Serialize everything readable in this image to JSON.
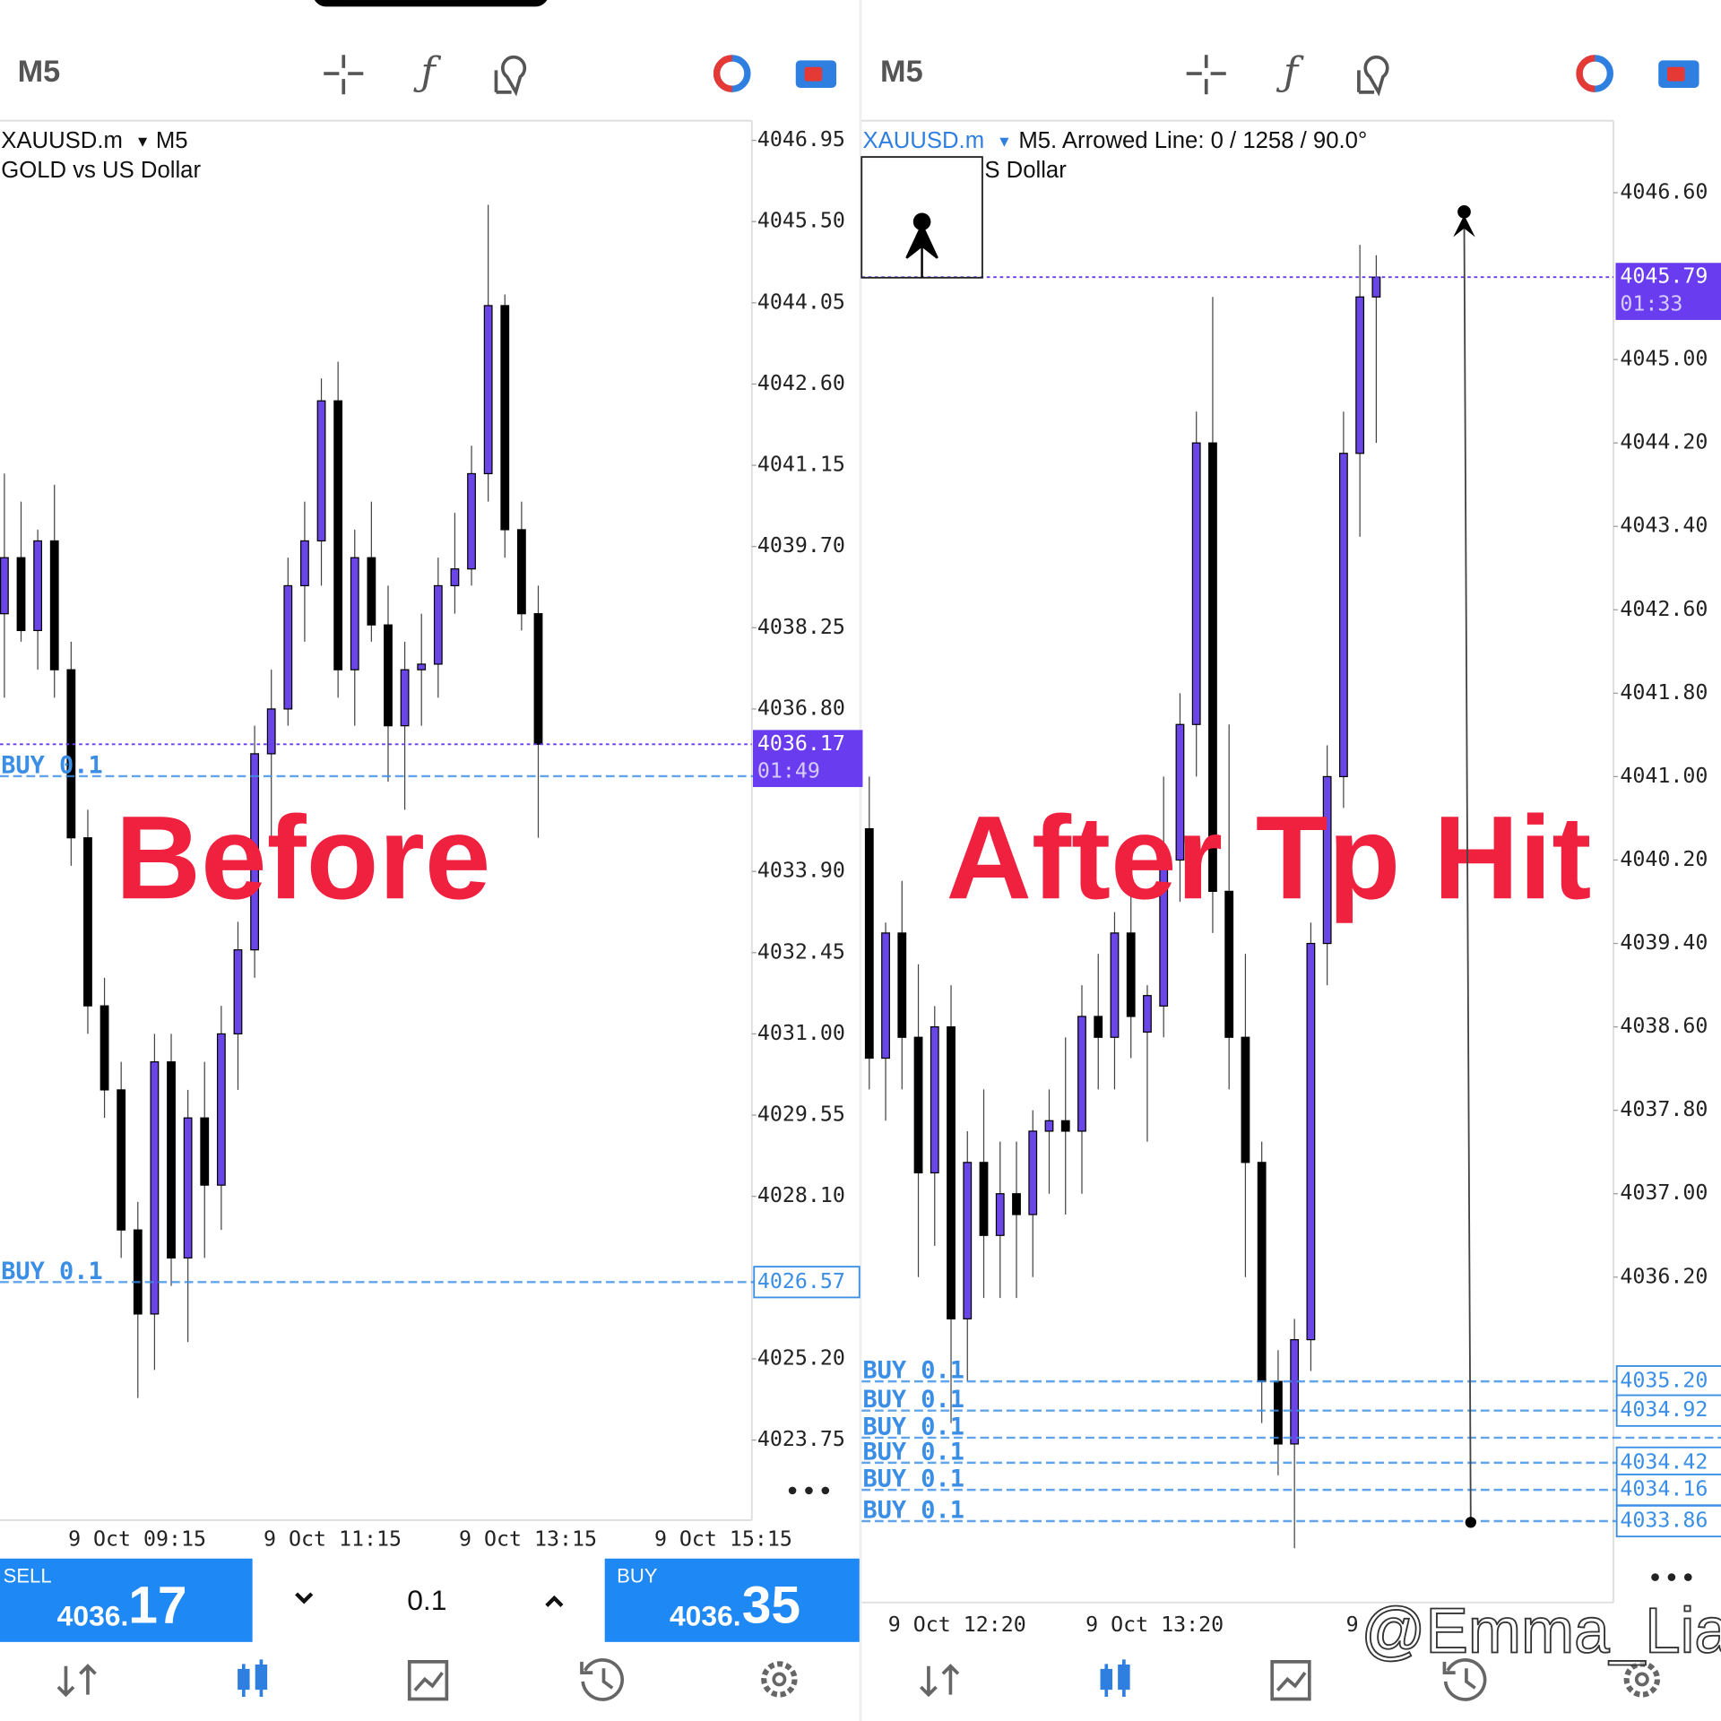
{
  "panels": [
    {
      "timeframe": "M5",
      "symbol": "XAUUSD.m",
      "symbol_tf": "M5",
      "subtitle": "GOLD vs US Dollar",
      "overlay": "Before",
      "ylim": [
        4022.32,
        4047.3
      ],
      "price_ticks": [
        4046.95,
        {
          "value": 4045.5,
          "label": "4045.50"
        },
        4044.05,
        {
          "value": 4042.6,
          "label": "4042.60"
        },
        4041.15,
        {
          "value": 4039.7,
          "label": "4039.70"
        },
        4038.25,
        {
          "value": 4036.8,
          "label": "4036.80"
        },
        {
          "value": 4033.9,
          "label": "4033.90"
        },
        4032.45,
        {
          "value": 4031.0,
          "label": "4031.00"
        },
        4029.55,
        {
          "value": 4028.1,
          "label": "4028.10"
        },
        {
          "value": 4025.2,
          "label": "4025.20"
        },
        4023.75
      ],
      "time_labels": [
        "9 Oct 09:15",
        "9 Oct 11:15",
        "9 Oct 13:15",
        "9 Oct 15:15"
      ],
      "candles": [
        [
          4038.5,
          4041,
          4037,
          4039.5
        ],
        [
          4039.5,
          4040.5,
          4038,
          4038.2
        ],
        [
          4038.2,
          4040,
          4037.5,
          4039.8
        ],
        [
          4039.8,
          4040.8,
          4037,
          4037.5
        ],
        [
          4037.5,
          4038,
          4034,
          4034.5
        ],
        [
          4034.5,
          4035,
          4031,
          4031.5
        ],
        [
          4031.5,
          4032,
          4029.5,
          4030
        ],
        [
          4030,
          4030.5,
          4027,
          4027.5
        ],
        [
          4027.5,
          4028,
          4024.5,
          4026
        ],
        [
          4026,
          4031,
          4025,
          4030.5
        ],
        [
          4030.5,
          4031,
          4026.5,
          4027
        ],
        [
          4027,
          4030,
          4025.5,
          4029.5
        ],
        [
          4029.5,
          4030.5,
          4027,
          4028.3
        ],
        [
          4028.3,
          4031.5,
          4027.5,
          4031
        ],
        [
          4031,
          4033,
          4030,
          4032.5
        ],
        [
          4032.5,
          4036.5,
          4032,
          4036
        ],
        [
          4036,
          4037.5,
          4034.5,
          4036.8
        ],
        [
          4036.8,
          4039.5,
          4036.5,
          4039
        ],
        [
          4039,
          4040.5,
          4038,
          4039.8
        ],
        [
          4039.8,
          4042.7,
          4039,
          4042.3
        ],
        [
          4042.3,
          4043,
          4037,
          4037.5
        ],
        [
          4037.5,
          4040,
          4036.5,
          4039.5
        ],
        [
          4039.5,
          4040.5,
          4038,
          4038.3
        ],
        [
          4038.3,
          4039,
          4035.5,
          4036.5
        ],
        [
          4036.5,
          4038,
          4035,
          4037.5
        ],
        [
          4037.5,
          4038.5,
          4036.5,
          4037.6
        ],
        [
          4037.6,
          4039.5,
          4037,
          4039
        ],
        [
          4039,
          4040.3,
          4038.5,
          4039.3
        ],
        [
          4039.3,
          4041.5,
          4039,
          4041
        ],
        [
          4041,
          4045.8,
          4040.5,
          4044
        ],
        [
          4044,
          4044.2,
          4039.5,
          4040
        ],
        [
          4040,
          4040.5,
          4038.2,
          4038.5
        ],
        [
          4038.5,
          4039,
          4034.5,
          4036.17
        ]
      ],
      "current": {
        "price": 4036.17,
        "label": "4036.17",
        "timer": "01:49"
      },
      "orders": [
        {
          "label": "BUY 0.1",
          "price": 4035.6
        },
        {
          "label": "BUY 0.1",
          "price": 4026.57,
          "price_label": "4026.57"
        }
      ]
    },
    {
      "timeframe": "M5",
      "symbol": "XAUUSD.m",
      "symbol_tf": "M5. Arrowed Line: 0 / 1258 / 90.0°",
      "subtitle": "S Dollar",
      "overlay": "After Tp Hit",
      "ylim": [
        4033.08,
        4047.29
      ],
      "price_ticks": [
        {
          "value": 4046.6,
          "label": "4046.60"
        },
        {
          "value": 4045.0,
          "label": "4045.00"
        },
        {
          "value": 4044.2,
          "label": "4044.20"
        },
        {
          "value": 4043.4,
          "label": "4043.40"
        },
        {
          "value": 4042.6,
          "label": "4042.60"
        },
        {
          "value": 4041.8,
          "label": "4041.80"
        },
        {
          "value": 4041.0,
          "label": "4041.00"
        },
        {
          "value": 4040.2,
          "label": "4040.20"
        },
        {
          "value": 4039.4,
          "label": "4039.40"
        },
        {
          "value": 4038.6,
          "label": "4038.60"
        },
        {
          "value": 4037.8,
          "label": "4037.80"
        },
        {
          "value": 4037.0,
          "label": "4037.00"
        },
        {
          "value": 4036.2,
          "label": "4036.20"
        }
      ],
      "time_labels": [
        "9 Oct 12:20",
        "9 Oct 13:20",
        "9"
      ],
      "candles": [
        [
          4040.5,
          4041,
          4038,
          4038.3
        ],
        [
          4038.3,
          4039.6,
          4037.7,
          4039.5
        ],
        [
          4039.5,
          4040,
          4038,
          4038.5
        ],
        [
          4038.5,
          4039.2,
          4036.2,
          4037.2
        ],
        [
          4037.2,
          4038.8,
          4036.5,
          4038.6
        ],
        [
          4038.6,
          4039,
          4034.8,
          4035.8
        ],
        [
          4035.8,
          4037.6,
          4035.2,
          4037.3
        ],
        [
          4037.3,
          4038,
          4036,
          4036.6
        ],
        [
          4036.6,
          4037.5,
          4036,
          4037
        ],
        [
          4037,
          4037.5,
          4036,
          4036.8
        ],
        [
          4036.8,
          4037.8,
          4036.2,
          4037.6
        ],
        [
          4037.6,
          4038,
          4037,
          4037.7
        ],
        [
          4037.7,
          4038.5,
          4036.8,
          4037.6
        ],
        [
          4037.6,
          4039,
          4037,
          4038.7
        ],
        [
          4038.7,
          4039.3,
          4038,
          4038.5
        ],
        [
          4038.5,
          4039.7,
          4038,
          4039.5
        ],
        [
          4039.5,
          4040,
          4038.3,
          4038.7
        ],
        [
          4038.55,
          4039,
          4037.5,
          4038.9
        ],
        [
          4038.8,
          4041,
          4038.5,
          4040.2
        ],
        [
          4040.2,
          4041.8,
          4039.8,
          4041.5
        ],
        [
          4041.5,
          4044.5,
          4041,
          4044.2
        ],
        [
          4044.2,
          4045.6,
          4039.5,
          4039.9
        ],
        [
          4039.9,
          4041.5,
          4038,
          4038.5
        ],
        [
          4038.5,
          4039.3,
          4036.2,
          4037.3
        ],
        [
          4037.3,
          4037.5,
          4034.8,
          4035.2
        ],
        [
          4035.2,
          4035.5,
          4034.3,
          4034.6
        ],
        [
          4034.6,
          4035.8,
          4033.6,
          4035.6
        ],
        [
          4035.6,
          4039.6,
          4035.3,
          4039.4
        ],
        [
          4039.4,
          4041.3,
          4039,
          4041
        ],
        [
          4041,
          4044.5,
          4040.7,
          4044.1
        ],
        [
          4044.1,
          4046.1,
          4043.3,
          4045.6
        ],
        [
          4045.6,
          4046,
          4044.2,
          4045.79
        ]
      ],
      "current": {
        "price": 4045.79,
        "label": "4045.79",
        "timer": "01:33"
      },
      "orders": [
        {
          "label": "BUY 0.1",
          "price": 4035.2,
          "price_label": "4035.20"
        },
        {
          "label": "BUY 0.1",
          "price": 4034.92,
          "price_label": "4034.92"
        },
        {
          "label": "BUY 0.1",
          "price": 4034.66
        },
        {
          "label": "BUY 0.1",
          "price": 4034.42,
          "price_label": "4034.42"
        },
        {
          "label": "BUY 0.1",
          "price": 4034.16,
          "price_label": "4034.16"
        },
        {
          "label": "BUY 0.1",
          "price": 4033.86,
          "price_label": "4033.86"
        }
      ]
    }
  ],
  "trade": {
    "sell_label": "SELL",
    "sell_main": "4036.",
    "sell_big": "17",
    "volume": "0.1",
    "buy_label": "BUY",
    "buy_main": "4036.",
    "buy_big": "35"
  },
  "watermark": "@Emma_Lia"
}
